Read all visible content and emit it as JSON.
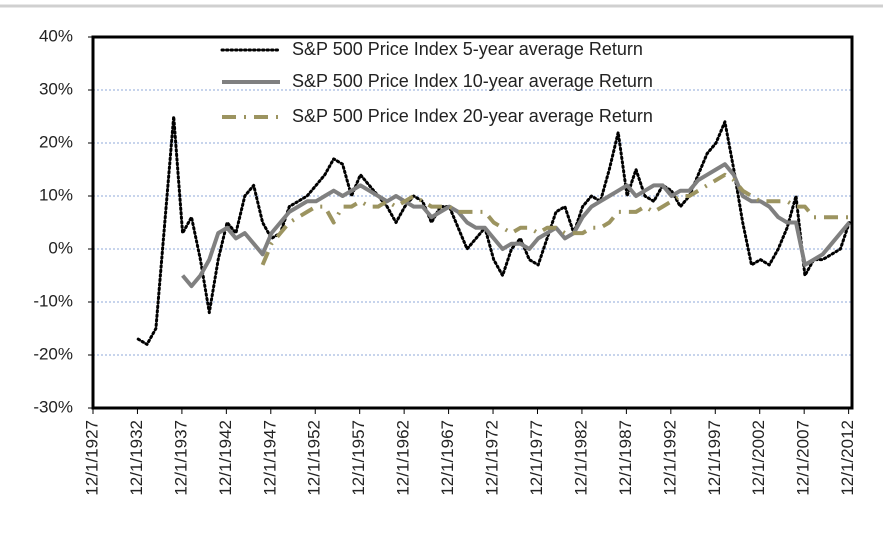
{
  "chart_data": {
    "type": "line",
    "x": [
      1933,
      1934,
      1935,
      1936,
      1937,
      1938,
      1939,
      1940,
      1941,
      1942,
      1943,
      1944,
      1945,
      1946,
      1947,
      1948,
      1949,
      1950,
      1951,
      1952,
      1953,
      1954,
      1955,
      1956,
      1957,
      1958,
      1959,
      1960,
      1961,
      1962,
      1963,
      1964,
      1965,
      1966,
      1967,
      1968,
      1969,
      1970,
      1971,
      1972,
      1973,
      1974,
      1975,
      1976,
      1977,
      1978,
      1979,
      1980,
      1981,
      1982,
      1983,
      1984,
      1985,
      1986,
      1987,
      1988,
      1989,
      1990,
      1991,
      1992,
      1993,
      1994,
      1995,
      1996,
      1997,
      1998,
      1999,
      2000,
      2001,
      2002,
      2003,
      2004,
      2005,
      2006,
      2007,
      2008,
      2009,
      2010,
      2011,
      2012,
      2013
    ],
    "series": [
      {
        "name": "S&P 500 Price Index 5-year average Return",
        "color": "#000000",
        "style": "dotted",
        "values": [
          -17,
          -18,
          -15,
          5,
          25,
          3,
          6,
          -2,
          -12,
          -2,
          5,
          3,
          10,
          12,
          5,
          2,
          3,
          8,
          9,
          10,
          12,
          14,
          17,
          16,
          10,
          14,
          12,
          10,
          8,
          5,
          8,
          10,
          9,
          5,
          8,
          8,
          4,
          0,
          2,
          4,
          -2,
          -5,
          0,
          2,
          -2,
          -3,
          2,
          7,
          8,
          3,
          8,
          10,
          9,
          15,
          22,
          10,
          15,
          10,
          9,
          12,
          11,
          8,
          10,
          14,
          18,
          20,
          24,
          15,
          5,
          -3,
          -2,
          -3,
          0,
          4,
          10,
          -5,
          -2,
          -2,
          -1,
          0,
          5
        ]
      },
      {
        "name": "S&P 500 Price Index 10-year average Return",
        "color": "#808080",
        "style": "solid",
        "values": [
          null,
          null,
          null,
          null,
          null,
          -5,
          -7,
          -5,
          -2,
          3,
          4,
          2,
          3,
          1,
          -1,
          3,
          5,
          7,
          8,
          9,
          9,
          10,
          11,
          10,
          11,
          12,
          11,
          10,
          9,
          10,
          9,
          8,
          8,
          6,
          7,
          8,
          7,
          5,
          4,
          4,
          2,
          0,
          1,
          1,
          0,
          2,
          3,
          4,
          2,
          3,
          6,
          8,
          9,
          10,
          11,
          12,
          10,
          11,
          12,
          12,
          10,
          11,
          11,
          13,
          14,
          15,
          16,
          14,
          10,
          9,
          9,
          8,
          6,
          5,
          5,
          -3,
          -2,
          -1,
          1,
          3,
          5
        ]
      },
      {
        "name": "S&P 500 Price Index 20-year average Return",
        "color": "#9c9460",
        "style": "dashdot",
        "values": [
          null,
          null,
          null,
          null,
          null,
          null,
          null,
          null,
          null,
          null,
          null,
          null,
          null,
          null,
          -3,
          1,
          3,
          5,
          6,
          7,
          8,
          8,
          5,
          8,
          8,
          9,
          8,
          8,
          9,
          8,
          9,
          10,
          9,
          8,
          8,
          8,
          7,
          7,
          7,
          7,
          5,
          4,
          3,
          4,
          4,
          3,
          4,
          4,
          3,
          3,
          3,
          4,
          4,
          5,
          7,
          7,
          7,
          8,
          7,
          8,
          9,
          10,
          10,
          11,
          12,
          13,
          14,
          13,
          11,
          10,
          9,
          9,
          9,
          9,
          8,
          8,
          6,
          6,
          6,
          6,
          6
        ]
      }
    ],
    "xlim": [
      1927.92,
      2013.3
    ],
    "xticks": [
      {
        "value": 1927.92,
        "label": "12/1/1927"
      },
      {
        "value": 1932.92,
        "label": "12/1/1932"
      },
      {
        "value": 1937.92,
        "label": "12/1/1937"
      },
      {
        "value": 1942.92,
        "label": "12/1/1942"
      },
      {
        "value": 1947.92,
        "label": "12/1/1947"
      },
      {
        "value": 1952.92,
        "label": "12/1/1952"
      },
      {
        "value": 1957.92,
        "label": "12/1/1957"
      },
      {
        "value": 1962.92,
        "label": "12/1/1962"
      },
      {
        "value": 1967.92,
        "label": "12/1/1967"
      },
      {
        "value": 1972.92,
        "label": "12/1/1972"
      },
      {
        "value": 1977.92,
        "label": "12/1/1977"
      },
      {
        "value": 1982.92,
        "label": "12/1/1982"
      },
      {
        "value": 1987.92,
        "label": "12/1/1987"
      },
      {
        "value": 1992.92,
        "label": "12/1/1992"
      },
      {
        "value": 1997.92,
        "label": "12/1/1997"
      },
      {
        "value": 2002.92,
        "label": "12/1/2002"
      },
      {
        "value": 2007.92,
        "label": "12/1/2007"
      },
      {
        "value": 2012.92,
        "label": "12/1/2012"
      }
    ],
    "ylim": [
      -30,
      40
    ],
    "yticks": [
      {
        "value": -30,
        "label": "-30%"
      },
      {
        "value": -20,
        "label": "-20%"
      },
      {
        "value": -10,
        "label": "-10%"
      },
      {
        "value": 0,
        "label": "0%"
      },
      {
        "value": 10,
        "label": "10%"
      },
      {
        "value": 20,
        "label": "20%"
      },
      {
        "value": 30,
        "label": "30%"
      },
      {
        "value": 40,
        "label": "40%"
      }
    ],
    "grid": true,
    "legend": "top"
  }
}
